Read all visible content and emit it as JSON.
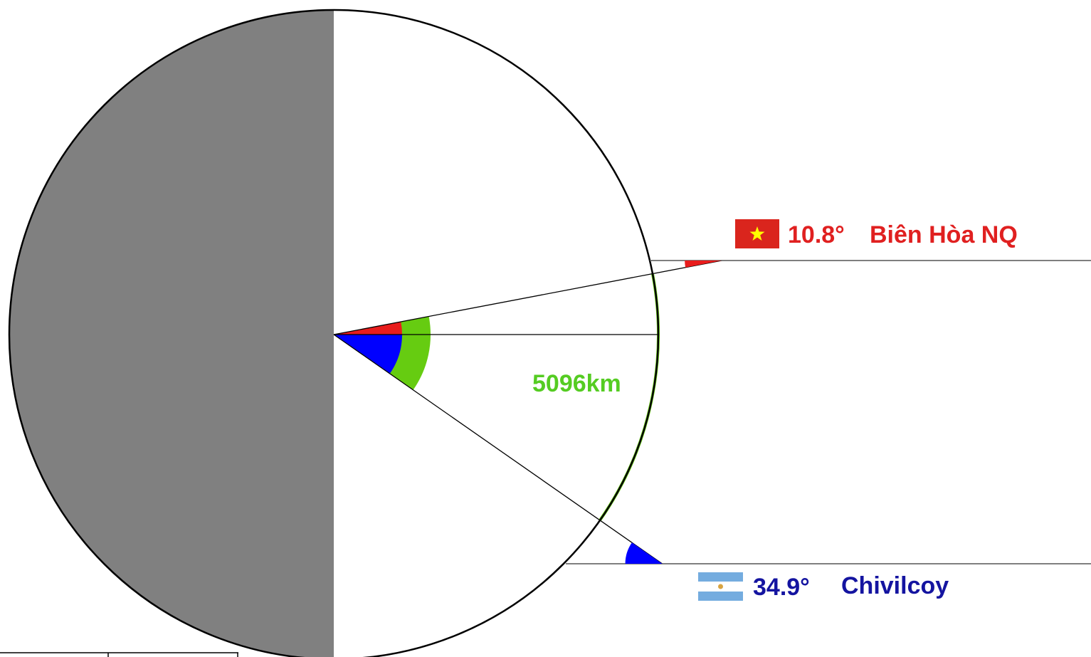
{
  "cities": {
    "north": {
      "name": "Biên Hòa NQ",
      "latitude_label": "10.8°",
      "latitude_deg": 10.8,
      "flag_icon": "vietnam-flag-icon",
      "color": "#e02020"
    },
    "south": {
      "name": "Chivilcoy",
      "latitude_label": "34.9°",
      "latitude_deg": -34.9,
      "flag_icon": "argentina-flag-icon",
      "color": "#1414a0"
    }
  },
  "distance": {
    "label": "5096km",
    "color": "#55cc22"
  },
  "colors": {
    "north_angle": "#e81c1c",
    "south_angle": "#0000ff",
    "total_angle": "#66cc11",
    "night_side": "#808080",
    "outline": "#000000",
    "vietnam_flag_red": "#da251d",
    "vietnam_flag_star": "#ffff00",
    "argentina_flag_blue": "#74acdf",
    "argentina_flag_sun": "#d9a441"
  }
}
